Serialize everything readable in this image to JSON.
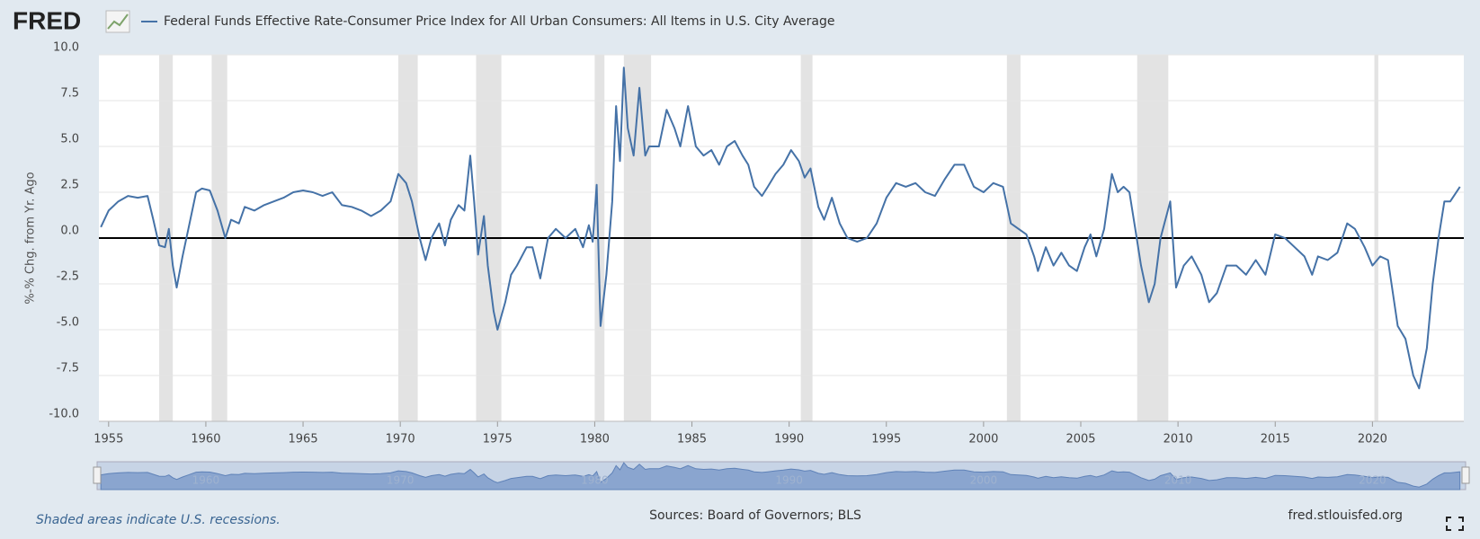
{
  "chart_data": {
    "type": "line",
    "logo": "FRED",
    "y_label": "%-% Chg. from Yr. Ago",
    "note": "Shaded areas indicate U.S. recessions.",
    "source": "Sources: Board of Governors; BLS",
    "site": "fred.stlouisfed.org",
    "x": [
      1954.6,
      1955,
      1955.5,
      1956,
      1956.5,
      1957,
      1957.3,
      1957.6,
      1957.9,
      1958.1,
      1958.3,
      1958.5,
      1958.8,
      1959.1,
      1959.5,
      1959.8,
      1960.2,
      1960.6,
      1961,
      1961.3,
      1961.7,
      1962,
      1962.5,
      1963,
      1963.5,
      1964,
      1964.5,
      1965,
      1965.5,
      1966,
      1966.5,
      1967,
      1967.5,
      1968,
      1968.5,
      1969,
      1969.5,
      1969.9,
      1970.3,
      1970.6,
      1971,
      1971.3,
      1971.6,
      1972,
      1972.3,
      1972.6,
      1973,
      1973.3,
      1973.6,
      1973.8,
      1974,
      1974.3,
      1974.5,
      1974.8,
      1975,
      1975.4,
      1975.7,
      1976,
      1976.5,
      1976.8,
      1977.2,
      1977.6,
      1978,
      1978.5,
      1979,
      1979.4,
      1979.7,
      1979.9,
      1980.1,
      1980.3,
      1980.6,
      1980.9,
      1981.1,
      1981.3,
      1981.5,
      1981.7,
      1982,
      1982.3,
      1982.6,
      1982.8,
      1983.3,
      1983.7,
      1984.1,
      1984.4,
      1984.8,
      1985.2,
      1985.6,
      1986,
      1986.4,
      1986.8,
      1987.2,
      1987.6,
      1987.9,
      1988.2,
      1988.6,
      1988.9,
      1989.3,
      1989.7,
      1990.1,
      1990.5,
      1990.8,
      1991.1,
      1991.5,
      1991.8,
      1992.2,
      1992.6,
      1993,
      1993.5,
      1994,
      1994.5,
      1995,
      1995.5,
      1996,
      1996.5,
      1997,
      1997.5,
      1998,
      1998.5,
      1999,
      1999.5,
      2000,
      2000.5,
      2001,
      2001.4,
      2001.8,
      2002.2,
      2002.6,
      2002.8,
      2003.2,
      2003.6,
      2004,
      2004.4,
      2004.8,
      2005.2,
      2005.5,
      2005.8,
      2006.2,
      2006.6,
      2006.9,
      2007.2,
      2007.5,
      2007.8,
      2008.1,
      2008.5,
      2008.8,
      2009.1,
      2009.6,
      2009.9,
      2010.3,
      2010.7,
      2011.2,
      2011.6,
      2012,
      2012.5,
      2013,
      2013.5,
      2014,
      2014.5,
      2015,
      2015.5,
      2016,
      2016.5,
      2016.9,
      2017.2,
      2017.7,
      2018.2,
      2018.7,
      2019.1,
      2019.6,
      2020,
      2020.4,
      2020.8,
      2021.3,
      2021.7,
      2022.1,
      2022.4,
      2022.8,
      2023.1,
      2023.4,
      2023.7,
      2024,
      2024.5
    ],
    "series": [
      {
        "name": "Federal Funds Effective Rate-Consumer Price Index for All Urban Consumers: All Items in U.S. City Average",
        "color": "#4572a7",
        "values": [
          0.6,
          1.5,
          2.0,
          2.3,
          2.2,
          2.3,
          1.0,
          -0.4,
          -0.5,
          0.5,
          -1.5,
          -2.7,
          -1.0,
          0.5,
          2.5,
          2.7,
          2.6,
          1.5,
          0.0,
          1.0,
          0.8,
          1.7,
          1.5,
          1.8,
          2.0,
          2.2,
          2.5,
          2.6,
          2.5,
          2.3,
          2.5,
          1.8,
          1.7,
          1.5,
          1.2,
          1.5,
          2.0,
          3.5,
          3.0,
          2.0,
          0.0,
          -1.2,
          0.0,
          0.8,
          -0.4,
          1.0,
          1.8,
          1.5,
          4.5,
          2.0,
          -0.9,
          1.2,
          -1.5,
          -4.0,
          -5.0,
          -3.5,
          -2.0,
          -1.5,
          -0.5,
          -0.5,
          -2.2,
          0.0,
          0.5,
          0.0,
          0.5,
          -0.5,
          0.7,
          -0.2,
          2.9,
          -4.8,
          -2.0,
          2.0,
          7.2,
          4.2,
          9.3,
          6.0,
          4.5,
          8.2,
          4.5,
          5.0,
          5.0,
          7.0,
          6.0,
          5.0,
          7.2,
          5.0,
          4.5,
          4.8,
          4.0,
          5.0,
          5.3,
          4.5,
          4.0,
          2.8,
          2.3,
          2.8,
          3.5,
          4.0,
          4.8,
          4.2,
          3.3,
          3.8,
          1.7,
          1.0,
          2.2,
          0.8,
          0.0,
          -0.2,
          0.0,
          0.8,
          2.2,
          3.0,
          2.8,
          3.0,
          2.5,
          2.3,
          3.2,
          4.0,
          4.0,
          2.8,
          2.5,
          3.0,
          2.8,
          0.8,
          0.5,
          0.2,
          -1.0,
          -1.8,
          -0.5,
          -1.5,
          -0.8,
          -1.5,
          -1.8,
          -0.5,
          0.2,
          -1.0,
          0.5,
          3.5,
          2.5,
          2.8,
          2.5,
          0.5,
          -1.5,
          -3.5,
          -2.5,
          0.0,
          2.0,
          -2.7,
          -1.5,
          -1.0,
          -2.0,
          -3.5,
          -3.0,
          -1.5,
          -1.5,
          -2.0,
          -1.2,
          -2.0,
          0.2,
          0.0,
          -0.5,
          -1.0,
          -2.0,
          -1.0,
          -1.2,
          -0.8,
          0.8,
          0.5,
          -0.5,
          -1.5,
          -1.0,
          -1.2,
          -4.8,
          -5.5,
          -7.5,
          -8.2,
          -6.0,
          -2.5,
          0.0,
          2.0,
          2.0,
          2.8
        ]
      }
    ],
    "recessions": [
      [
        1957.6,
        1958.3
      ],
      [
        1960.3,
        1961.1
      ],
      [
        1969.9,
        1970.9
      ],
      [
        1973.9,
        1975.2
      ],
      [
        1980.0,
        1980.5
      ],
      [
        1981.5,
        1982.9
      ],
      [
        1990.6,
        1991.2
      ],
      [
        2001.2,
        2001.9
      ],
      [
        2007.9,
        2009.5
      ],
      [
        2020.1,
        2020.3
      ]
    ],
    "xlim": [
      1954.5,
      2024.7
    ],
    "xticks": [
      1955,
      1960,
      1965,
      1970,
      1975,
      1980,
      1985,
      1990,
      1995,
      2000,
      2005,
      2010,
      2015,
      2020
    ],
    "navigator_ticks": [
      1960,
      1970,
      1980,
      1990,
      2000,
      2010,
      2020
    ],
    "ylim": [
      -10,
      10
    ],
    "yticks": [
      {
        "value": -10,
        "label": "-10.0"
      },
      -7.5,
      {
        "value": -5,
        "label": "-5.0"
      },
      -2.5,
      {
        "value": 0,
        "label": "0.0"
      },
      2.5,
      {
        "value": 5,
        "label": "5.0"
      },
      7.5,
      {
        "value": 10,
        "label": "10.0"
      }
    ],
    "grid": true,
    "zero_line": true
  }
}
